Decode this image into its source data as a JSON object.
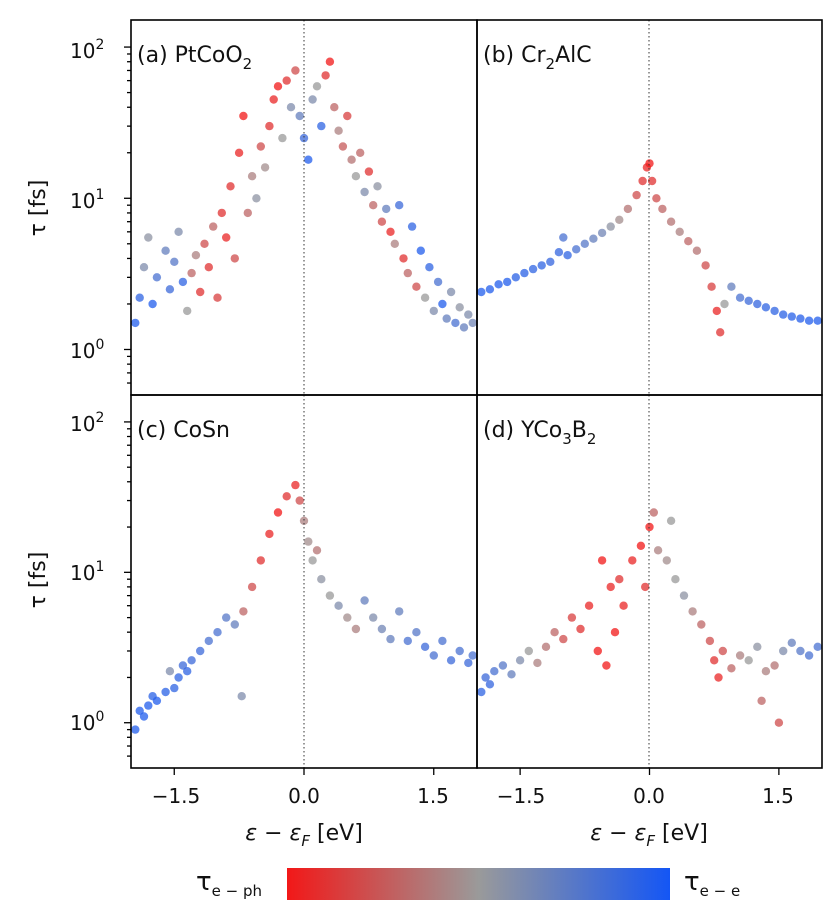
{
  "chart_data": [
    {
      "panel": "(a)",
      "type": "scatter",
      "label_prefix": "(a) ",
      "label_main": "PtCoO",
      "label_sub": "2",
      "label_tail": "",
      "x_range": [
        -2.0,
        2.0
      ],
      "y_range": [
        0.5,
        150
      ],
      "y_scale": "log",
      "points": [
        [
          -1.95,
          1.5,
          0.95
        ],
        [
          -1.9,
          2.2,
          0.9
        ],
        [
          -1.85,
          3.5,
          0.6
        ],
        [
          -1.8,
          5.5,
          0.55
        ],
        [
          -1.75,
          2.0,
          0.95
        ],
        [
          -1.7,
          3.0,
          0.8
        ],
        [
          -1.6,
          4.5,
          0.7
        ],
        [
          -1.55,
          2.5,
          0.85
        ],
        [
          -1.5,
          3.8,
          0.75
        ],
        [
          -1.45,
          6.0,
          0.6
        ],
        [
          -1.4,
          2.8,
          0.9
        ],
        [
          -1.35,
          1.8,
          0.5
        ],
        [
          -1.3,
          3.2,
          0.3
        ],
        [
          -1.25,
          4.2,
          0.4
        ],
        [
          -1.2,
          2.4,
          0.1
        ],
        [
          -1.15,
          5.0,
          0.2
        ],
        [
          -1.1,
          3.5,
          0.1
        ],
        [
          -1.05,
          6.5,
          0.3
        ],
        [
          -1.0,
          2.2,
          0.15
        ],
        [
          -0.95,
          8.0,
          0.1
        ],
        [
          -0.9,
          5.5,
          0.05
        ],
        [
          -0.85,
          12.0,
          0.1
        ],
        [
          -0.8,
          4.0,
          0.2
        ],
        [
          -0.75,
          20.0,
          0.05
        ],
        [
          -0.7,
          35.0,
          0.0
        ],
        [
          -0.65,
          8.0,
          0.3
        ],
        [
          -0.6,
          14.0,
          0.4
        ],
        [
          -0.55,
          10.0,
          0.55
        ],
        [
          -0.5,
          22.0,
          0.2
        ],
        [
          -0.45,
          16.0,
          0.45
        ],
        [
          -0.4,
          30.0,
          0.1
        ],
        [
          -0.35,
          45.0,
          0.05
        ],
        [
          -0.3,
          55.0,
          0.0
        ],
        [
          -0.25,
          25.0,
          0.5
        ],
        [
          -0.2,
          60.0,
          0.1
        ],
        [
          -0.15,
          40.0,
          0.6
        ],
        [
          -0.1,
          70.0,
          0.2
        ],
        [
          -0.05,
          35.0,
          0.7
        ],
        [
          0.0,
          25.0,
          0.85
        ],
        [
          0.05,
          18.0,
          0.95
        ],
        [
          0.1,
          45.0,
          0.6
        ],
        [
          0.15,
          55.0,
          0.5
        ],
        [
          0.2,
          30.0,
          0.9
        ],
        [
          0.25,
          65.0,
          0.1
        ],
        [
          0.3,
          80.0,
          0.0
        ],
        [
          0.35,
          40.0,
          0.3
        ],
        [
          0.4,
          28.0,
          0.4
        ],
        [
          0.45,
          22.0,
          0.25
        ],
        [
          0.5,
          35.0,
          0.15
        ],
        [
          0.55,
          18.0,
          0.35
        ],
        [
          0.6,
          14.0,
          0.5
        ],
        [
          0.65,
          20.0,
          0.3
        ],
        [
          0.7,
          11.0,
          0.6
        ],
        [
          0.75,
          15.0,
          0.1
        ],
        [
          0.8,
          9.0,
          0.3
        ],
        [
          0.85,
          12.0,
          0.55
        ],
        [
          0.9,
          7.0,
          0.2
        ],
        [
          0.95,
          8.5,
          0.7
        ],
        [
          1.0,
          6.0,
          0.05
        ],
        [
          1.05,
          5.0,
          0.4
        ],
        [
          1.1,
          9.0,
          0.85
        ],
        [
          1.15,
          4.0,
          0.1
        ],
        [
          1.2,
          3.2,
          0.3
        ],
        [
          1.25,
          6.5,
          0.9
        ],
        [
          1.3,
          2.6,
          0.2
        ],
        [
          1.35,
          4.5,
          0.95
        ],
        [
          1.4,
          2.2,
          0.5
        ],
        [
          1.45,
          3.5,
          0.9
        ],
        [
          1.5,
          1.8,
          0.6
        ],
        [
          1.55,
          2.8,
          0.8
        ],
        [
          1.6,
          2.0,
          0.95
        ],
        [
          1.65,
          1.6,
          0.7
        ],
        [
          1.7,
          2.4,
          0.6
        ],
        [
          1.75,
          1.5,
          0.8
        ],
        [
          1.8,
          1.9,
          0.55
        ],
        [
          1.85,
          1.4,
          0.7
        ],
        [
          1.9,
          1.7,
          0.6
        ],
        [
          1.95,
          1.5,
          0.65
        ]
      ]
    },
    {
      "panel": "(b)",
      "type": "scatter",
      "label_prefix": "(b) ",
      "label_main": "Cr",
      "label_sub": "2",
      "label_tail": "AlC",
      "x_range": [
        -2.0,
        2.0
      ],
      "y_range": [
        0.5,
        150
      ],
      "y_scale": "log",
      "points": [
        [
          -1.95,
          2.4,
          0.95
        ],
        [
          -1.85,
          2.5,
          0.95
        ],
        [
          -1.75,
          2.7,
          0.95
        ],
        [
          -1.65,
          2.8,
          0.95
        ],
        [
          -1.55,
          3.0,
          0.92
        ],
        [
          -1.45,
          3.2,
          0.92
        ],
        [
          -1.35,
          3.4,
          0.9
        ],
        [
          -1.25,
          3.6,
          0.9
        ],
        [
          -1.15,
          3.8,
          0.88
        ],
        [
          -1.05,
          4.4,
          0.88
        ],
        [
          -1.0,
          5.5,
          0.8
        ],
        [
          -0.95,
          4.2,
          0.9
        ],
        [
          -0.85,
          4.6,
          0.8
        ],
        [
          -0.75,
          5.0,
          0.75
        ],
        [
          -0.65,
          5.4,
          0.7
        ],
        [
          -0.55,
          5.9,
          0.65
        ],
        [
          -0.45,
          6.5,
          0.55
        ],
        [
          -0.35,
          7.2,
          0.45
        ],
        [
          -0.25,
          8.5,
          0.35
        ],
        [
          -0.15,
          10.5,
          0.2
        ],
        [
          -0.08,
          13.0,
          0.1
        ],
        [
          -0.03,
          16.0,
          0.05
        ],
        [
          0.0,
          17.0,
          0.0
        ],
        [
          0.03,
          13.0,
          0.1
        ],
        [
          0.08,
          10.0,
          0.2
        ],
        [
          0.15,
          8.5,
          0.3
        ],
        [
          0.25,
          7.0,
          0.35
        ],
        [
          0.35,
          6.0,
          0.4
        ],
        [
          0.45,
          5.2,
          0.3
        ],
        [
          0.55,
          4.5,
          0.35
        ],
        [
          0.65,
          3.6,
          0.2
        ],
        [
          0.72,
          2.6,
          0.15
        ],
        [
          0.78,
          1.8,
          0.05
        ],
        [
          0.82,
          1.3,
          0.1
        ],
        [
          0.87,
          2.0,
          0.5
        ],
        [
          0.95,
          2.6,
          0.7
        ],
        [
          1.05,
          2.2,
          0.8
        ],
        [
          1.15,
          2.1,
          0.85
        ],
        [
          1.25,
          2.0,
          0.88
        ],
        [
          1.35,
          1.9,
          0.9
        ],
        [
          1.45,
          1.8,
          0.9
        ],
        [
          1.55,
          1.7,
          0.92
        ],
        [
          1.65,
          1.65,
          0.93
        ],
        [
          1.75,
          1.6,
          0.94
        ],
        [
          1.85,
          1.55,
          0.95
        ],
        [
          1.95,
          1.55,
          0.95
        ]
      ]
    },
    {
      "panel": "(c)",
      "type": "scatter",
      "label_prefix": "(c) ",
      "label_main": "CoSn",
      "label_sub": "",
      "label_tail": "",
      "x_range": [
        -2.0,
        2.0
      ],
      "y_range": [
        0.5,
        150
      ],
      "y_scale": "log",
      "points": [
        [
          -1.95,
          0.9,
          0.95
        ],
        [
          -1.9,
          1.2,
          0.95
        ],
        [
          -1.85,
          1.1,
          0.95
        ],
        [
          -1.8,
          1.3,
          0.95
        ],
        [
          -1.75,
          1.5,
          0.92
        ],
        [
          -1.7,
          1.4,
          0.95
        ],
        [
          -1.6,
          1.6,
          0.92
        ],
        [
          -1.55,
          2.2,
          0.6
        ],
        [
          -1.5,
          1.7,
          0.9
        ],
        [
          -1.45,
          2.0,
          0.9
        ],
        [
          -1.4,
          2.4,
          0.85
        ],
        [
          -1.35,
          2.2,
          0.9
        ],
        [
          -1.3,
          2.6,
          0.85
        ],
        [
          -1.2,
          3.0,
          0.85
        ],
        [
          -1.1,
          3.5,
          0.8
        ],
        [
          -1.0,
          4.0,
          0.8
        ],
        [
          -0.9,
          5.0,
          0.75
        ],
        [
          -0.8,
          4.5,
          0.7
        ],
        [
          -0.72,
          1.5,
          0.6
        ],
        [
          -0.7,
          5.5,
          0.3
        ],
        [
          -0.6,
          8.0,
          0.2
        ],
        [
          -0.5,
          12.0,
          0.1
        ],
        [
          -0.4,
          18.0,
          0.05
        ],
        [
          -0.3,
          25.0,
          0.0
        ],
        [
          -0.2,
          32.0,
          0.1
        ],
        [
          -0.1,
          38.0,
          0.05
        ],
        [
          -0.05,
          30.0,
          0.2
        ],
        [
          0.0,
          22.0,
          0.4
        ],
        [
          0.05,
          16.0,
          0.45
        ],
        [
          0.1,
          12.0,
          0.5
        ],
        [
          0.15,
          14.0,
          0.35
        ],
        [
          0.2,
          9.0,
          0.55
        ],
        [
          0.3,
          7.0,
          0.5
        ],
        [
          0.4,
          6.0,
          0.6
        ],
        [
          0.5,
          5.0,
          0.45
        ],
        [
          0.6,
          4.2,
          0.4
        ],
        [
          0.7,
          6.5,
          0.7
        ],
        [
          0.8,
          5.0,
          0.6
        ],
        [
          0.9,
          4.2,
          0.65
        ],
        [
          1.0,
          3.6,
          0.7
        ],
        [
          1.1,
          5.5,
          0.7
        ],
        [
          1.2,
          3.5,
          0.8
        ],
        [
          1.3,
          4.0,
          0.75
        ],
        [
          1.4,
          3.2,
          0.85
        ],
        [
          1.5,
          2.8,
          0.8
        ],
        [
          1.6,
          3.5,
          0.8
        ],
        [
          1.7,
          2.6,
          0.85
        ],
        [
          1.8,
          3.0,
          0.8
        ],
        [
          1.9,
          2.5,
          0.85
        ],
        [
          1.95,
          2.8,
          0.8
        ]
      ]
    },
    {
      "panel": "(d)",
      "type": "scatter",
      "label_prefix": "(d) ",
      "label_main": "YCo",
      "label_sub": "3",
      "label_tail": "B",
      "label_sub2": "2",
      "x_range": [
        -2.0,
        2.0
      ],
      "y_range": [
        0.5,
        150
      ],
      "y_scale": "log",
      "points": [
        [
          -1.95,
          1.6,
          0.9
        ],
        [
          -1.9,
          2.0,
          0.85
        ],
        [
          -1.85,
          1.8,
          0.88
        ],
        [
          -1.8,
          2.2,
          0.8
        ],
        [
          -1.7,
          2.4,
          0.75
        ],
        [
          -1.6,
          2.1,
          0.7
        ],
        [
          -1.5,
          2.6,
          0.6
        ],
        [
          -1.4,
          3.0,
          0.5
        ],
        [
          -1.3,
          2.5,
          0.4
        ],
        [
          -1.2,
          3.2,
          0.35
        ],
        [
          -1.1,
          4.0,
          0.3
        ],
        [
          -1.0,
          3.6,
          0.2
        ],
        [
          -0.9,
          5.0,
          0.15
        ],
        [
          -0.8,
          4.2,
          0.1
        ],
        [
          -0.7,
          6.0,
          0.05
        ],
        [
          -0.6,
          3.0,
          0.0
        ],
        [
          -0.55,
          12.0,
          0.0
        ],
        [
          -0.5,
          2.4,
          0.0
        ],
        [
          -0.45,
          8.0,
          0.05
        ],
        [
          -0.4,
          4.0,
          0.0
        ],
        [
          -0.35,
          9.0,
          0.1
        ],
        [
          -0.3,
          6.0,
          0.05
        ],
        [
          -0.2,
          12.0,
          0.05
        ],
        [
          -0.1,
          15.0,
          0.0
        ],
        [
          -0.05,
          8.0,
          0.1
        ],
        [
          0.0,
          20.0,
          0.0
        ],
        [
          0.05,
          25.0,
          0.3
        ],
        [
          0.1,
          14.0,
          0.4
        ],
        [
          0.2,
          12.0,
          0.45
        ],
        [
          0.25,
          22.0,
          0.5
        ],
        [
          0.3,
          9.0,
          0.5
        ],
        [
          0.4,
          7.0,
          0.55
        ],
        [
          0.5,
          5.5,
          0.4
        ],
        [
          0.6,
          4.5,
          0.3
        ],
        [
          0.7,
          3.5,
          0.2
        ],
        [
          0.75,
          2.6,
          0.1
        ],
        [
          0.8,
          2.0,
          0.05
        ],
        [
          0.85,
          3.0,
          0.2
        ],
        [
          0.95,
          2.3,
          0.3
        ],
        [
          1.05,
          2.8,
          0.4
        ],
        [
          1.15,
          2.6,
          0.5
        ],
        [
          1.25,
          3.2,
          0.55
        ],
        [
          1.3,
          1.4,
          0.3
        ],
        [
          1.35,
          2.2,
          0.4
        ],
        [
          1.45,
          2.4,
          0.35
        ],
        [
          1.5,
          1.0,
          0.2
        ],
        [
          1.55,
          3.0,
          0.6
        ],
        [
          1.65,
          3.4,
          0.7
        ],
        [
          1.75,
          3.0,
          0.75
        ],
        [
          1.85,
          2.8,
          0.8
        ],
        [
          1.95,
          3.2,
          0.8
        ]
      ]
    }
  ],
  "x_ticks": [
    "−1.5",
    "0.0",
    "1.5"
  ],
  "y_ticks": {
    "t1": "10",
    "t1_exp": "2",
    "t2": "10",
    "t2_exp": "1",
    "t3": "10",
    "t3_exp": "0"
  },
  "y_axis_title": "τ [fs]",
  "x_axis_title": {
    "eps": "ε",
    "minus": " − ",
    "eps2": "ε",
    "sub": "F",
    "unit": " [eV]"
  },
  "colorbar": {
    "left_label": "τ",
    "left_sub": "e − ph",
    "right_label": "τ",
    "right_sub": "e − e",
    "color_start": "#f21818",
    "color_mid": "#9a9a9a",
    "color_end": "#1456f5"
  }
}
